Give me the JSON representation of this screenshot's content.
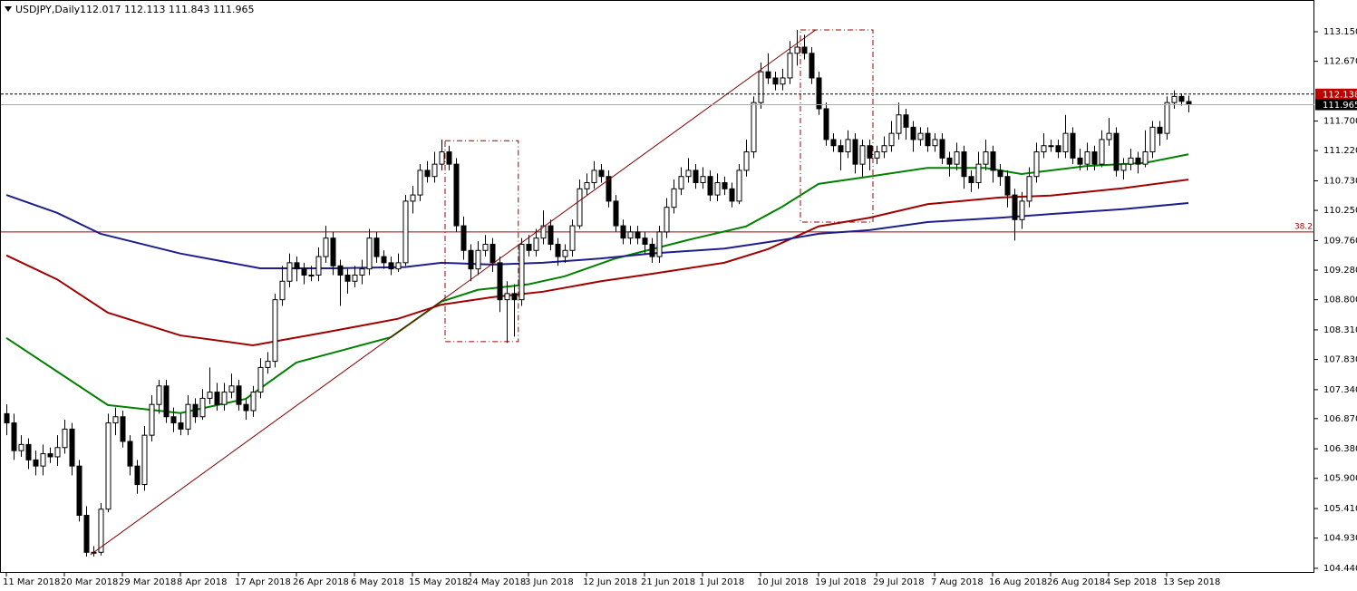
{
  "chart_data": {
    "type": "candlestick",
    "symbol": "USDJPY,Daily",
    "ohlc_text": "112.017 112.113 111.843 111.965",
    "ylim": [
      104.366,
      113.665
    ],
    "yticks": [
      {
        "value": 113.15,
        "label": "113.150"
      },
      {
        "value": 112.67,
        "label": "112.670"
      },
      {
        "value": 111.7,
        "label": "111.700"
      },
      {
        "value": 111.22,
        "label": "111.220"
      },
      {
        "value": 110.73,
        "label": "110.730"
      },
      {
        "value": 110.25,
        "label": "110.250"
      },
      {
        "value": 109.76,
        "label": "109.760"
      },
      {
        "value": 109.28,
        "label": "109.280"
      },
      {
        "value": 108.8,
        "label": "108.800"
      },
      {
        "value": 108.31,
        "label": "108.310"
      },
      {
        "value": 107.83,
        "label": "107.830"
      },
      {
        "value": 107.34,
        "label": "107.340"
      },
      {
        "value": 106.87,
        "label": "106.870"
      },
      {
        "value": 106.38,
        "label": "106.380"
      },
      {
        "value": 105.9,
        "label": "105.900"
      },
      {
        "value": 105.41,
        "label": "105.410"
      },
      {
        "value": 104.93,
        "label": "104.930"
      },
      {
        "value": 104.44,
        "label": "104.440"
      }
    ],
    "xticks": [
      {
        "value": 0,
        "label": "11 Mar 2018"
      },
      {
        "value": 8,
        "label": "20 Mar 2018"
      },
      {
        "value": 16,
        "label": "29 Mar 2018"
      },
      {
        "value": 24,
        "label": "8 Apr 2018"
      },
      {
        "value": 32,
        "label": "17 Apr 2018"
      },
      {
        "value": 40,
        "label": "26 Apr 2018"
      },
      {
        "value": 48,
        "label": "6 May 2018"
      },
      {
        "value": 56,
        "label": "15 May 2018"
      },
      {
        "value": 64,
        "label": "24 May 2018"
      },
      {
        "value": 72,
        "label": "3 Jun 2018"
      },
      {
        "value": 80,
        "label": "12 Jun 2018"
      },
      {
        "value": 88,
        "label": "21 Jun 2018"
      },
      {
        "value": 96,
        "label": "1 Jul 2018"
      },
      {
        "value": 104,
        "label": "10 Jul 2018"
      },
      {
        "value": 112,
        "label": "19 Jul 2018"
      },
      {
        "value": 120,
        "label": "29 Jul 2018"
      },
      {
        "value": 128,
        "label": "7 Aug 2018"
      },
      {
        "value": 136,
        "label": "16 Aug 2018"
      },
      {
        "value": 144,
        "label": "26 Aug 2018"
      },
      {
        "value": 152,
        "label": "4 Sep 2018"
      },
      {
        "value": 160,
        "label": "13 Sep 2018"
      }
    ],
    "candles": [
      [
        106.95,
        107.1,
        106.6,
        106.8
      ],
      [
        106.8,
        106.95,
        106.2,
        106.35
      ],
      [
        106.35,
        106.6,
        106.25,
        106.45
      ],
      [
        106.45,
        106.55,
        106.05,
        106.2
      ],
      [
        106.2,
        106.35,
        105.95,
        106.1
      ],
      [
        106.1,
        106.45,
        105.95,
        106.3
      ],
      [
        106.3,
        106.4,
        106.15,
        106.25
      ],
      [
        106.25,
        106.6,
        106.1,
        106.4
      ],
      [
        106.4,
        106.85,
        106.3,
        106.7
      ],
      [
        106.7,
        106.8,
        105.95,
        106.1
      ],
      [
        106.1,
        106.2,
        105.2,
        105.3
      ],
      [
        105.3,
        105.45,
        104.63,
        104.7
      ],
      [
        104.7,
        104.8,
        104.63,
        104.7
      ],
      [
        104.7,
        105.5,
        104.65,
        105.4
      ],
      [
        105.4,
        106.95,
        105.35,
        106.8
      ],
      [
        106.8,
        107.05,
        106.6,
        106.9
      ],
      [
        106.9,
        107.0,
        106.4,
        106.5
      ],
      [
        106.5,
        106.6,
        105.95,
        106.1
      ],
      [
        106.1,
        106.2,
        105.65,
        105.8
      ],
      [
        105.8,
        106.75,
        105.7,
        106.6
      ],
      [
        106.6,
        107.25,
        106.5,
        107.1
      ],
      [
        107.1,
        107.5,
        106.95,
        107.4
      ],
      [
        107.4,
        107.5,
        106.8,
        106.9
      ],
      [
        106.9,
        107.05,
        106.65,
        106.8
      ],
      [
        106.8,
        106.95,
        106.6,
        106.7
      ],
      [
        106.7,
        107.25,
        106.6,
        107.1
      ],
      [
        107.1,
        107.2,
        106.8,
        106.9
      ],
      [
        106.9,
        107.35,
        106.85,
        107.2
      ],
      [
        107.2,
        107.7,
        107.1,
        107.3
      ],
      [
        107.3,
        107.45,
        107.0,
        107.1
      ],
      [
        107.1,
        107.45,
        107.0,
        107.3
      ],
      [
        107.3,
        107.6,
        107.2,
        107.4
      ],
      [
        107.4,
        107.5,
        107.0,
        107.1
      ],
      [
        107.1,
        107.2,
        106.85,
        107.0
      ],
      [
        107.0,
        107.4,
        106.9,
        107.3
      ],
      [
        107.3,
        107.85,
        107.2,
        107.7
      ],
      [
        107.7,
        107.95,
        107.6,
        107.8
      ],
      [
        107.8,
        108.9,
        107.7,
        108.8
      ],
      [
        108.8,
        109.35,
        108.7,
        109.1
      ],
      [
        109.1,
        109.55,
        109.0,
        109.4
      ],
      [
        109.4,
        109.5,
        109.1,
        109.3
      ],
      [
        109.3,
        109.4,
        109.05,
        109.2
      ],
      [
        109.2,
        109.35,
        109.1,
        109.2
      ],
      [
        109.2,
        109.65,
        109.1,
        109.5
      ],
      [
        109.5,
        110.0,
        109.4,
        109.8
      ],
      [
        109.8,
        109.9,
        109.2,
        109.35
      ],
      [
        109.35,
        109.45,
        108.7,
        109.2
      ],
      [
        109.2,
        109.3,
        108.9,
        109.1
      ],
      [
        109.1,
        109.35,
        109.0,
        109.2
      ],
      [
        109.2,
        109.45,
        109.05,
        109.3
      ],
      [
        109.3,
        109.95,
        109.2,
        109.8
      ],
      [
        109.8,
        109.9,
        109.4,
        109.5
      ],
      [
        109.5,
        109.6,
        109.3,
        109.4
      ],
      [
        109.4,
        109.5,
        109.2,
        109.3
      ],
      [
        109.3,
        109.55,
        109.25,
        109.4
      ],
      [
        109.4,
        110.5,
        109.35,
        110.4
      ],
      [
        110.4,
        110.65,
        110.2,
        110.5
      ],
      [
        110.5,
        111.0,
        110.4,
        110.9
      ],
      [
        110.9,
        111.05,
        110.7,
        110.8
      ],
      [
        110.8,
        111.2,
        110.7,
        111.0
      ],
      [
        111.0,
        111.4,
        110.9,
        111.2
      ],
      [
        111.2,
        111.3,
        110.9,
        111.0
      ],
      [
        111.0,
        111.1,
        109.9,
        110.0
      ],
      [
        110.0,
        110.15,
        109.45,
        109.6
      ],
      [
        109.6,
        109.7,
        109.1,
        109.3
      ],
      [
        109.3,
        109.75,
        109.2,
        109.6
      ],
      [
        109.6,
        109.85,
        109.5,
        109.7
      ],
      [
        109.7,
        109.8,
        109.25,
        109.4
      ],
      [
        109.4,
        109.5,
        108.6,
        108.8
      ],
      [
        108.8,
        109.1,
        108.1,
        108.9
      ],
      [
        108.9,
        109.05,
        108.2,
        108.8
      ],
      [
        108.8,
        109.8,
        108.7,
        109.7
      ],
      [
        109.7,
        109.85,
        109.5,
        109.6
      ],
      [
        109.6,
        109.95,
        109.5,
        109.8
      ],
      [
        109.8,
        110.25,
        109.7,
        110.0
      ],
      [
        110.0,
        110.1,
        109.6,
        109.7
      ],
      [
        109.7,
        109.8,
        109.35,
        109.5
      ],
      [
        109.5,
        109.7,
        109.4,
        109.6
      ],
      [
        109.6,
        110.1,
        109.5,
        110.0
      ],
      [
        110.0,
        110.75,
        109.95,
        110.6
      ],
      [
        110.6,
        110.85,
        110.5,
        110.7
      ],
      [
        110.7,
        111.05,
        110.6,
        110.9
      ],
      [
        110.9,
        111.0,
        110.7,
        110.8
      ],
      [
        110.8,
        110.9,
        110.3,
        110.4
      ],
      [
        110.4,
        110.5,
        109.9,
        110.0
      ],
      [
        110.0,
        110.1,
        109.7,
        109.8
      ],
      [
        109.8,
        110.0,
        109.7,
        109.9
      ],
      [
        109.9,
        110.0,
        109.7,
        109.8
      ],
      [
        109.8,
        109.9,
        109.55,
        109.7
      ],
      [
        109.7,
        109.8,
        109.4,
        109.5
      ],
      [
        109.5,
        110.0,
        109.4,
        109.9
      ],
      [
        109.9,
        110.45,
        109.8,
        110.3
      ],
      [
        110.3,
        110.75,
        110.2,
        110.6
      ],
      [
        110.6,
        110.95,
        110.5,
        110.8
      ],
      [
        110.8,
        111.1,
        110.7,
        110.9
      ],
      [
        110.9,
        111.0,
        110.6,
        110.7
      ],
      [
        110.7,
        110.95,
        110.6,
        110.8
      ],
      [
        110.8,
        110.9,
        110.4,
        110.5
      ],
      [
        110.5,
        110.85,
        110.4,
        110.7
      ],
      [
        110.7,
        110.8,
        110.5,
        110.6
      ],
      [
        110.6,
        110.7,
        110.3,
        110.4
      ],
      [
        110.4,
        111.0,
        110.35,
        110.9
      ],
      [
        110.9,
        111.4,
        110.8,
        111.2
      ],
      [
        111.2,
        112.1,
        111.1,
        112.0
      ],
      [
        112.0,
        112.65,
        111.9,
        112.5
      ],
      [
        112.5,
        112.8,
        112.3,
        112.4
      ],
      [
        112.4,
        112.5,
        112.2,
        112.3
      ],
      [
        112.3,
        112.55,
        112.2,
        112.4
      ],
      [
        112.4,
        113.0,
        112.3,
        112.8
      ],
      [
        112.8,
        113.18,
        112.6,
        112.9
      ],
      [
        112.9,
        113.1,
        112.7,
        112.8
      ],
      [
        112.8,
        112.9,
        112.3,
        112.4
      ],
      [
        112.4,
        112.5,
        111.8,
        111.9
      ],
      [
        111.9,
        112.0,
        111.3,
        111.4
      ],
      [
        111.4,
        111.5,
        111.2,
        111.3
      ],
      [
        111.3,
        111.4,
        110.9,
        111.2
      ],
      [
        111.2,
        111.55,
        111.1,
        111.4
      ],
      [
        111.4,
        111.5,
        110.85,
        111.0
      ],
      [
        111.0,
        111.4,
        110.8,
        111.3
      ],
      [
        111.3,
        111.4,
        110.9,
        111.1
      ],
      [
        111.1,
        111.3,
        111.0,
        111.2
      ],
      [
        111.2,
        111.45,
        111.1,
        111.3
      ],
      [
        111.3,
        111.7,
        111.2,
        111.5
      ],
      [
        111.5,
        112.0,
        111.4,
        111.8
      ],
      [
        111.8,
        111.9,
        111.4,
        111.6
      ],
      [
        111.6,
        111.7,
        111.2,
        111.4
      ],
      [
        111.4,
        111.6,
        111.3,
        111.5
      ],
      [
        111.5,
        111.6,
        111.2,
        111.3
      ],
      [
        111.3,
        111.5,
        111.2,
        111.4
      ],
      [
        111.4,
        111.5,
        111.0,
        111.1
      ],
      [
        111.1,
        111.2,
        110.8,
        111.0
      ],
      [
        111.0,
        111.35,
        110.9,
        111.2
      ],
      [
        111.2,
        111.3,
        110.6,
        110.8
      ],
      [
        110.8,
        110.9,
        110.55,
        110.7
      ],
      [
        110.7,
        111.2,
        110.6,
        111.0
      ],
      [
        111.0,
        111.4,
        110.9,
        111.2
      ],
      [
        111.2,
        111.3,
        110.7,
        110.9
      ],
      [
        110.9,
        111.0,
        110.65,
        110.8
      ],
      [
        110.8,
        110.9,
        110.3,
        110.5
      ],
      [
        110.5,
        110.6,
        109.76,
        110.1
      ],
      [
        110.1,
        110.55,
        109.95,
        110.4
      ],
      [
        110.4,
        110.95,
        110.3,
        110.8
      ],
      [
        110.8,
        111.35,
        110.7,
        111.2
      ],
      [
        111.2,
        111.5,
        111.1,
        111.3
      ],
      [
        111.3,
        111.4,
        111.2,
        111.3
      ],
      [
        111.3,
        111.4,
        111.1,
        111.2
      ],
      [
        111.2,
        111.8,
        111.1,
        111.5
      ],
      [
        111.5,
        111.6,
        111.0,
        111.1
      ],
      [
        111.1,
        111.25,
        110.9,
        111.0
      ],
      [
        111.0,
        111.35,
        110.9,
        111.2
      ],
      [
        111.2,
        111.3,
        110.9,
        111.0
      ],
      [
        111.0,
        111.55,
        110.95,
        111.4
      ],
      [
        111.4,
        111.75,
        111.3,
        111.5
      ],
      [
        111.5,
        111.6,
        110.8,
        110.9
      ],
      [
        110.9,
        111.1,
        110.75,
        111.0
      ],
      [
        111.0,
        111.25,
        110.9,
        111.1
      ],
      [
        111.1,
        111.2,
        110.85,
        111.0
      ],
      [
        111.0,
        111.55,
        110.95,
        111.2
      ],
      [
        111.2,
        111.7,
        111.1,
        111.6
      ],
      [
        111.6,
        111.7,
        111.3,
        111.5
      ],
      [
        111.5,
        112.1,
        111.4,
        112.0
      ],
      [
        112.0,
        112.2,
        111.9,
        112.1
      ],
      [
        112.1,
        112.15,
        111.95,
        112.02
      ],
      [
        112.017,
        112.113,
        111.843,
        111.965
      ]
    ],
    "series": [
      {
        "color": "#008000",
        "x": [
          0,
          14,
          24,
          33,
          40,
          53,
          60,
          65,
          72,
          77,
          84,
          94,
          102,
          107,
          112,
          119,
          127,
          135,
          140,
          149,
          157,
          163
        ],
        "values": [
          108.18,
          107.09,
          106.96,
          107.19,
          107.78,
          108.19,
          108.77,
          108.96,
          109.05,
          109.18,
          109.47,
          109.77,
          109.99,
          110.31,
          110.68,
          110.8,
          110.94,
          110.94,
          110.84,
          110.97,
          111.02,
          111.16
        ]
      },
      {
        "color": "#a00000",
        "x": [
          0,
          7,
          14,
          24,
          34,
          44,
          54,
          60,
          67,
          74,
          82,
          89,
          99,
          105,
          112,
          119,
          127,
          137,
          144,
          154,
          163
        ],
        "values": [
          109.52,
          109.13,
          108.59,
          108.22,
          108.06,
          108.27,
          108.49,
          108.72,
          108.84,
          108.93,
          109.1,
          109.22,
          109.4,
          109.62,
          109.99,
          110.13,
          110.35,
          110.46,
          110.49,
          110.61,
          110.75
        ]
      },
      {
        "color": "#1e1e8c",
        "x": [
          0,
          7,
          13,
          24,
          35,
          45,
          55,
          60,
          67,
          74,
          82,
          89,
          99,
          107,
          112,
          119,
          127,
          137,
          144,
          154,
          163
        ],
        "values": [
          110.5,
          110.21,
          109.87,
          109.55,
          109.31,
          109.31,
          109.33,
          109.4,
          109.37,
          109.4,
          109.47,
          109.55,
          109.63,
          109.77,
          109.87,
          109.93,
          110.06,
          110.13,
          110.19,
          110.27,
          110.37
        ]
      }
    ],
    "trendline": {
      "x": [
        11.6,
        111.6
      ],
      "values": [
        104.66,
        113.18
      ],
      "color": "#800000"
    },
    "rectangles": [
      {
        "x": [
          60.5,
          70.6
        ],
        "values": [
          108.12,
          111.38
        ],
        "color": "#a00000"
      },
      {
        "x": [
          109.5,
          119.5
        ],
        "values": [
          110.06,
          113.18
        ],
        "color": "#a00000"
      }
    ],
    "fib_level": {
      "value": 109.9,
      "label": "38.2",
      "color": "#a00000"
    },
    "price_lines": [
      {
        "value": 112.138,
        "label": "112.138",
        "color": "#c00000",
        "style": "dashed"
      },
      {
        "value": 111.965,
        "label": "111.965",
        "color": "#000000",
        "style": "solid"
      }
    ],
    "bull_color": "#ffffff",
    "bear_color": "#000000"
  }
}
